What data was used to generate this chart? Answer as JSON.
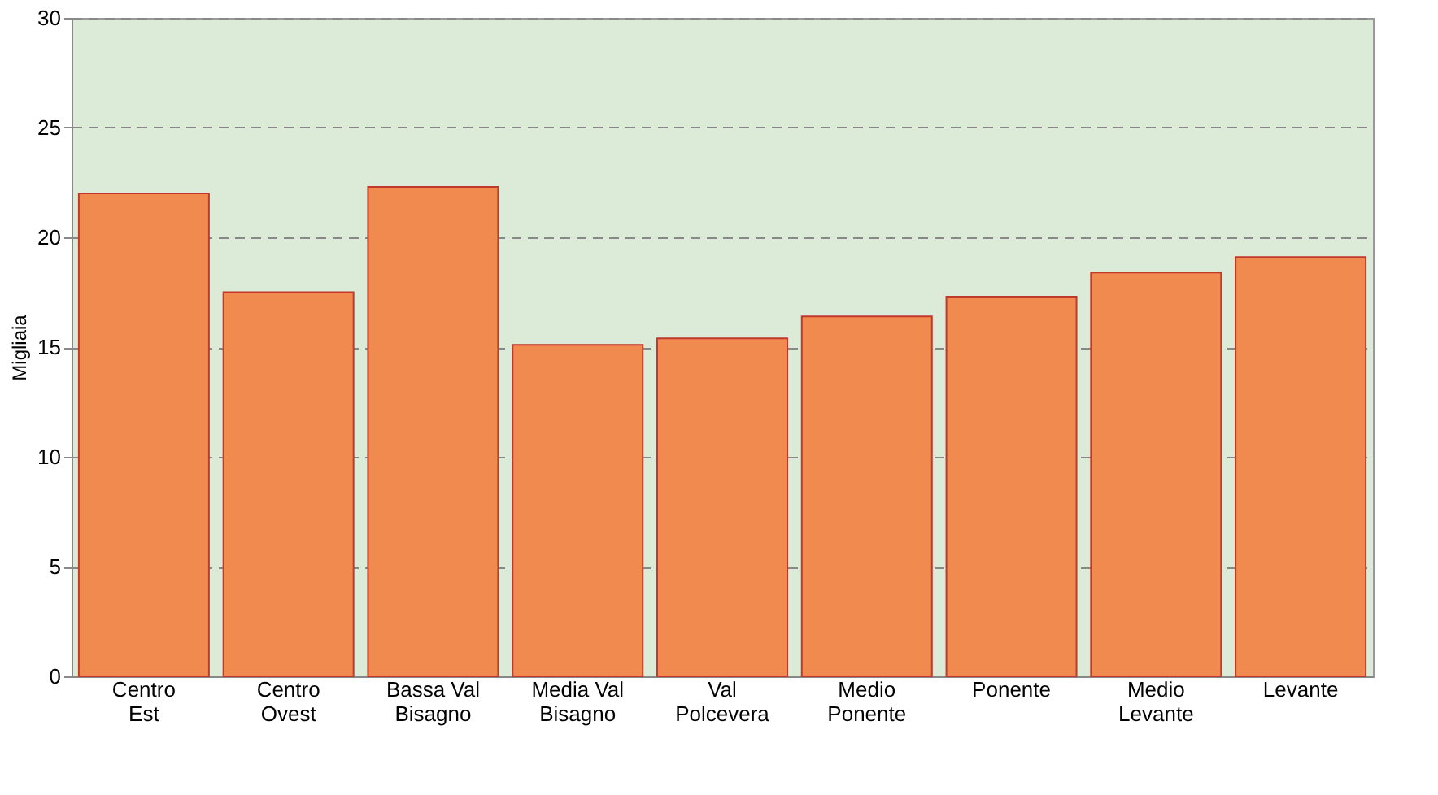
{
  "chart_data": {
    "type": "bar",
    "ylabel": "Migliaia",
    "categories": [
      "Centro Est",
      "Centro Ovest",
      "Bassa Val Bisagno",
      "Media Val Bisagno",
      "Val Polcevera",
      "Medio Ponente",
      "Ponente",
      "Medio Levante",
      "Levante"
    ],
    "values": [
      22.0,
      17.5,
      22.3,
      15.1,
      15.4,
      16.4,
      17.3,
      18.4,
      19.1
    ],
    "color": "#f08a4f",
    "ylim": [
      0,
      30
    ],
    "yticks": [
      0,
      5,
      10,
      15,
      20,
      25,
      30
    ],
    "grid": "y",
    "line_style": "dashed"
  }
}
